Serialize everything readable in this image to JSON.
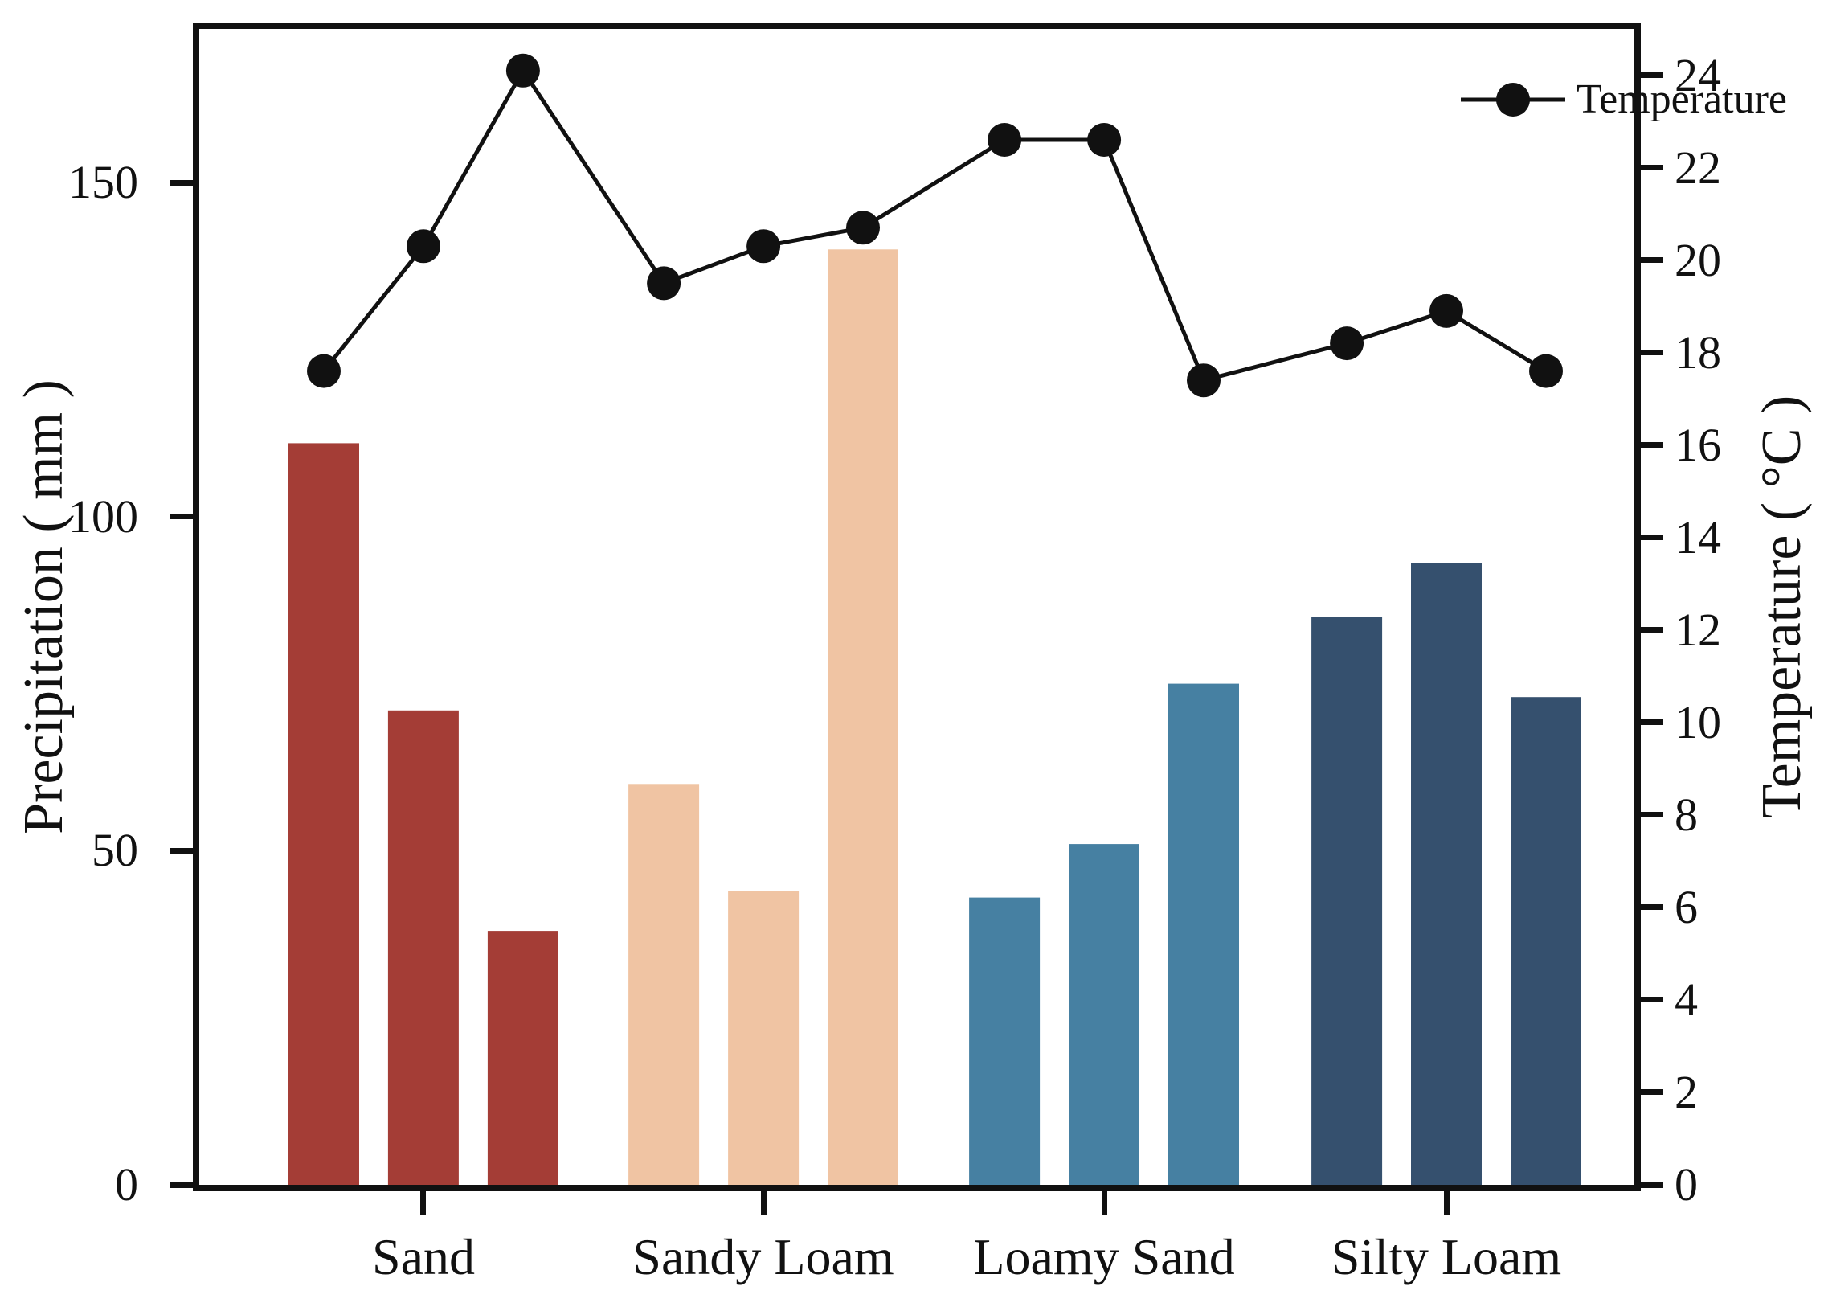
{
  "chart_data": {
    "type": "bar+line",
    "title": "",
    "categories": [
      "Sand",
      "Sandy Loam",
      "Loamy Sand",
      "Silty Loam"
    ],
    "series": [
      {
        "name": "Precipitation",
        "type": "bar",
        "axis": "left",
        "values_by_group": [
          [
            111,
            71,
            38
          ],
          [
            60,
            44,
            140
          ],
          [
            43,
            51,
            75
          ],
          [
            85,
            93,
            73
          ]
        ],
        "group_colors": [
          "#A43D36",
          "#F0C4A3",
          "#4680A2",
          "#35506E"
        ]
      },
      {
        "name": "Temperature",
        "type": "line",
        "axis": "right",
        "values": [
          17.6,
          20.3,
          24.1,
          19.5,
          20.3,
          20.7,
          22.6,
          22.6,
          17.4,
          18.2,
          18.9,
          17.6
        ],
        "color": "#111111",
        "marker": "filled-circle"
      }
    ],
    "left_axis": {
      "label": "Precipitation ( mm )",
      "ticks": [
        0,
        50,
        100,
        150
      ],
      "min": 0,
      "max": 173
    },
    "right_axis": {
      "label": "Temperature ( °C )",
      "ticks": [
        0,
        2,
        4,
        6,
        8,
        10,
        12,
        14,
        16,
        18,
        20,
        22,
        24
      ],
      "min": 0,
      "max": 25
    },
    "x_axis": {
      "tick_positions": "group-centers"
    },
    "legend": {
      "label": "Temperature",
      "position": "top-right-inside"
    },
    "grid": "off",
    "frame": "full-box",
    "background": "#ffffff"
  }
}
